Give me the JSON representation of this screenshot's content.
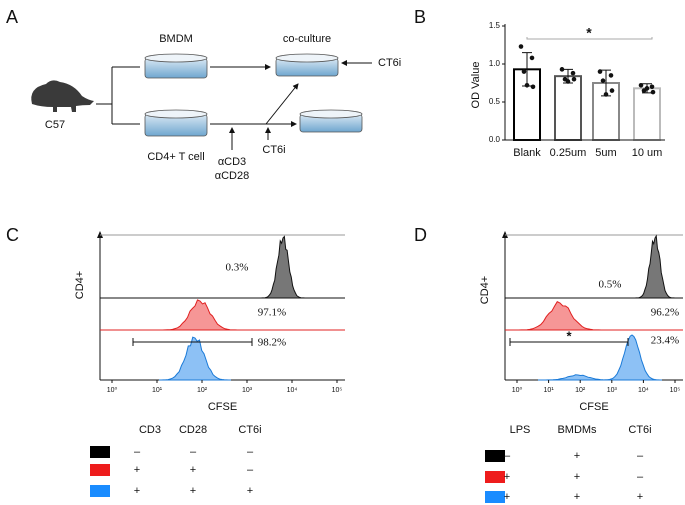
{
  "panel_a": {
    "label": "A",
    "mouse": "C57",
    "bmdm": "BMDM",
    "coculture": "co-culture",
    "cd4_t_cell": "CD4+ T cell",
    "stim": [
      "αCD3",
      "αCD28"
    ],
    "inhibitor_top": "CT6i",
    "inhibitor_bottom": "CT6i"
  },
  "chart_data": {
    "type": "bar",
    "label": "B",
    "ylabel": "OD Value",
    "categories": [
      "Blank",
      "0.25um",
      "5um",
      "10 um"
    ],
    "values": [
      0.93,
      0.84,
      0.75,
      0.68
    ],
    "errors": [
      0.22,
      0.09,
      0.17,
      0.06
    ],
    "points": [
      [
        1.23,
        1.08,
        0.9,
        0.7,
        0.72
      ],
      [
        0.93,
        0.88,
        0.8,
        0.8,
        0.77
      ],
      [
        0.9,
        0.85,
        0.78,
        0.65,
        0.6
      ],
      [
        0.72,
        0.7,
        0.65,
        0.63,
        0.68
      ]
    ],
    "colors": [
      "#000000",
      "#555555",
      "#888888",
      "#bbbbbb"
    ],
    "ylim": [
      0,
      1.5
    ],
    "yticks": [
      {
        "value": 0,
        "label": "0.0"
      },
      0.5,
      {
        "value": 1,
        "label": "1.0"
      },
      1.5
    ],
    "annotation": "*"
  },
  "panel_c": {
    "label": "C",
    "ylabel": "CD4+",
    "xlabel": "CFSE",
    "xticks": [
      "10⁰",
      "10¹",
      "10²",
      "10³",
      "10⁴",
      "10⁵"
    ],
    "percentages": [
      "0.3%",
      "97.1%",
      "98.2%"
    ],
    "legend": {
      "headers": [
        "CD3",
        "CD28",
        "CT6i"
      ],
      "row_colors": [
        "#000000",
        "#ee1c1c",
        "#1a8cff"
      ],
      "rows": [
        [
          "–",
          "–",
          "–"
        ],
        [
          "+",
          "+",
          "–"
        ],
        [
          "+",
          "+",
          "+"
        ]
      ]
    }
  },
  "panel_d": {
    "label": "D",
    "ylabel": "CD4+",
    "xlabel": "CFSE",
    "xticks": [
      "10⁰",
      "10¹",
      "10²",
      "10³",
      "10⁴",
      "10⁵"
    ],
    "percentages": [
      "0.5%",
      "96.2%",
      "23.4%"
    ],
    "annotation": "*",
    "legend": {
      "headers": [
        "LPS",
        "BMDMs",
        "CT6i"
      ],
      "row_colors": [
        "#000000",
        "#ee1c1c",
        "#1a8cff"
      ],
      "rows": [
        [
          "–",
          "+",
          "–"
        ],
        [
          "+",
          "+",
          "–"
        ],
        [
          "+",
          "+",
          "+"
        ]
      ]
    }
  }
}
